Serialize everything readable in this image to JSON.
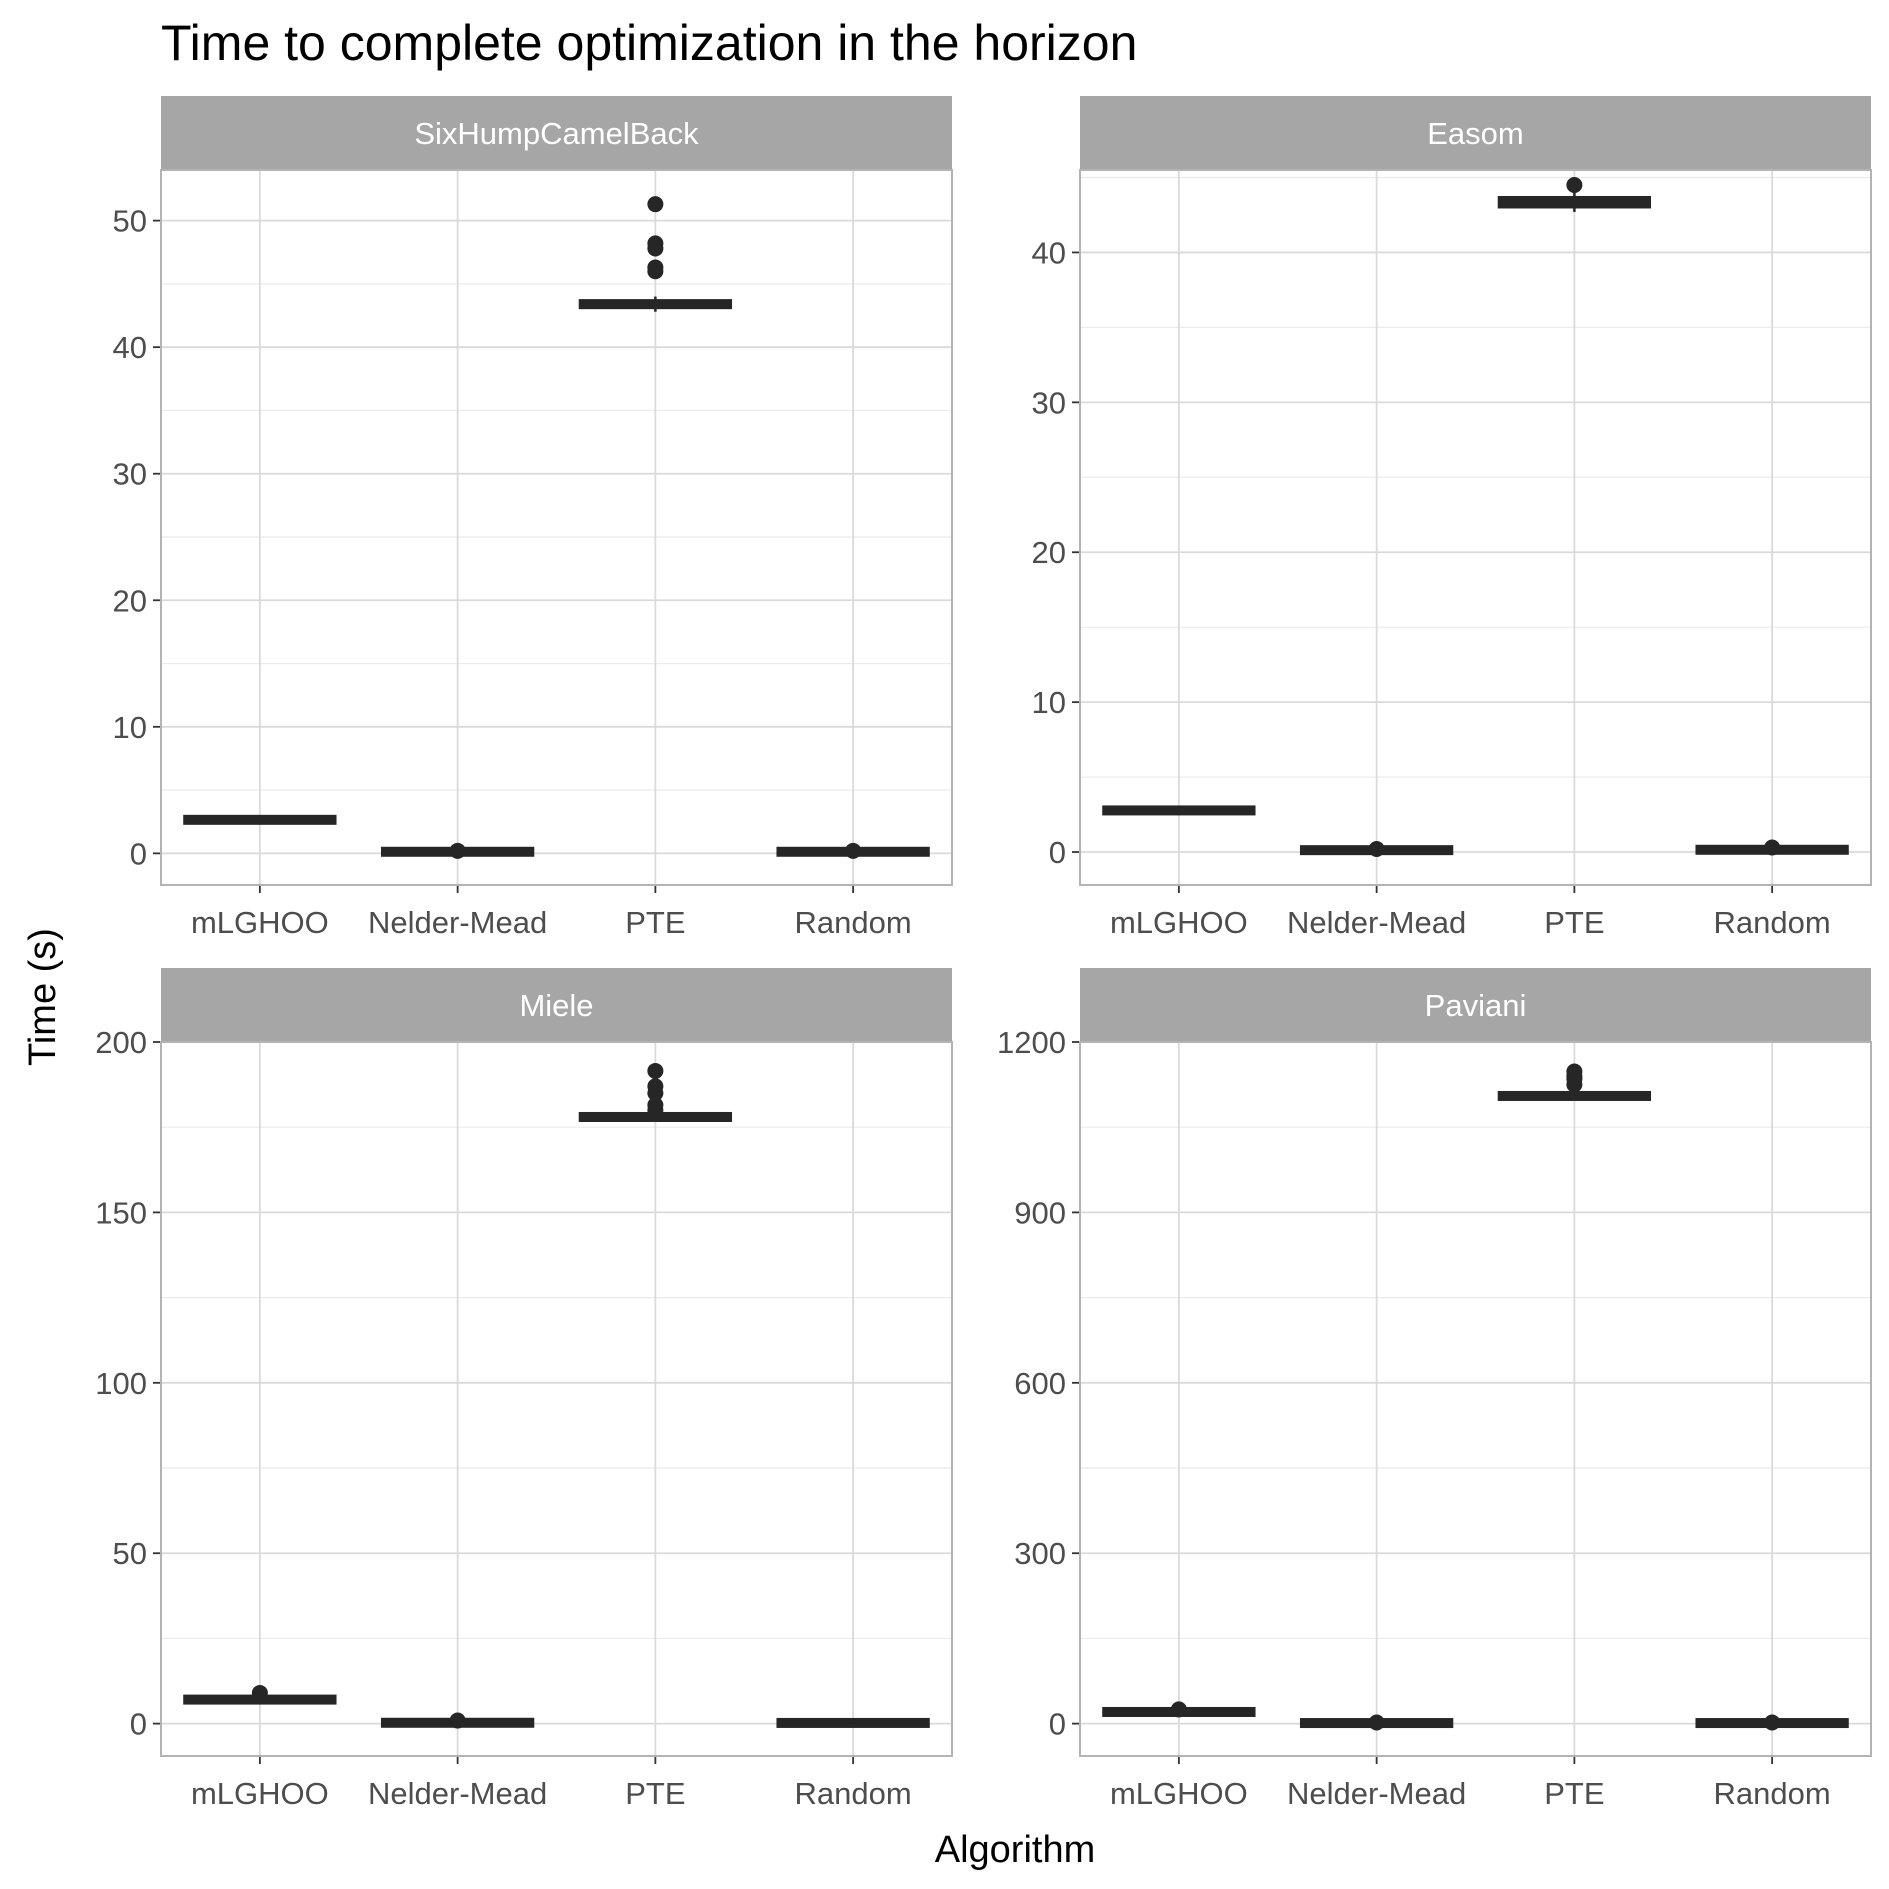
{
  "chart_data": {
    "type": "box",
    "title": "Time to complete optimization in the horizon",
    "xlabel": "Algorithm",
    "ylabel": "Time (s)",
    "categories": [
      "mLGHOO",
      "Nelder-Mead",
      "PTE",
      "Random"
    ],
    "grid": true,
    "theme": "light",
    "panels": [
      {
        "name": "SixHumpCamelBack",
        "ylim": [
          -2.5,
          54
        ],
        "yticks": [
          0,
          10,
          20,
          30,
          40,
          50
        ],
        "boxes": [
          {
            "category": "mLGHOO",
            "min": 2.6,
            "q1": 2.6,
            "median": 2.65,
            "q3": 2.7,
            "max": 2.8,
            "outliers": []
          },
          {
            "category": "Nelder-Mead",
            "min": 0.05,
            "q1": 0.1,
            "median": 0.1,
            "q3": 0.15,
            "max": 0.2,
            "outliers": [
              0.2
            ]
          },
          {
            "category": "PTE",
            "min": 42.8,
            "q1": 43.2,
            "median": 43.4,
            "q3": 43.6,
            "max": 44.0,
            "outliers": [
              46.0,
              46.3,
              47.8,
              48.2,
              51.3
            ]
          },
          {
            "category": "Random",
            "min": 0.05,
            "q1": 0.1,
            "median": 0.1,
            "q3": 0.15,
            "max": 0.2,
            "outliers": [
              0.2
            ]
          }
        ]
      },
      {
        "name": "Easom",
        "ylim": [
          -2.2,
          45.5
        ],
        "yticks": [
          0,
          10,
          20,
          30,
          40
        ],
        "boxes": [
          {
            "category": "mLGHOO",
            "min": 2.6,
            "q1": 2.7,
            "median": 2.75,
            "q3": 2.85,
            "max": 3.0,
            "outliers": []
          },
          {
            "category": "Nelder-Mead",
            "min": 0.05,
            "q1": 0.1,
            "median": 0.1,
            "q3": 0.15,
            "max": 0.2,
            "outliers": [
              0.2
            ]
          },
          {
            "category": "PTE",
            "min": 42.7,
            "q1": 43.1,
            "median": 43.3,
            "q3": 43.6,
            "max": 44.0,
            "outliers": [
              44.5
            ]
          },
          {
            "category": "Random",
            "min": 0.05,
            "q1": 0.1,
            "median": 0.15,
            "q3": 0.2,
            "max": 0.3,
            "outliers": [
              0.3
            ]
          }
        ]
      },
      {
        "name": "Miele",
        "ylim": [
          -9.5,
          200
        ],
        "yticks": [
          0,
          50,
          100,
          150,
          200
        ],
        "boxes": [
          {
            "category": "mLGHOO",
            "min": 6.5,
            "q1": 6.8,
            "median": 7.0,
            "q3": 7.3,
            "max": 7.8,
            "outliers": [
              9.0
            ]
          },
          {
            "category": "Nelder-Mead",
            "min": 0.0,
            "q1": 0.1,
            "median": 0.2,
            "q3": 0.4,
            "max": 0.6,
            "outliers": [
              0.9
            ]
          },
          {
            "category": "PTE",
            "min": 177.0,
            "q1": 177.5,
            "median": 178.0,
            "q3": 178.5,
            "max": 179.0,
            "outliers": [
              180.0,
              181.5,
              185.0,
              187.0,
              191.5
            ]
          },
          {
            "category": "Random",
            "min": 0.0,
            "q1": 0.1,
            "median": 0.2,
            "q3": 0.3,
            "max": 0.4,
            "outliers": []
          }
        ]
      },
      {
        "name": "Paviani",
        "ylim": [
          -57,
          1200
        ],
        "yticks": [
          0,
          300,
          600,
          900,
          1200
        ],
        "boxes": [
          {
            "category": "mLGHOO",
            "min": 18.0,
            "q1": 19.5,
            "median": 20.5,
            "q3": 21.5,
            "max": 23.0,
            "outliers": [
              25.0
            ]
          },
          {
            "category": "Nelder-Mead",
            "min": 0.0,
            "q1": 0.5,
            "median": 1.0,
            "q3": 1.5,
            "max": 2.0,
            "outliers": [
              2.0
            ]
          },
          {
            "category": "PTE",
            "min": 1100.0,
            "q1": 1102.0,
            "median": 1105.0,
            "q3": 1108.0,
            "max": 1112.0,
            "outliers": [
              1125.0,
              1135.0,
              1140.0,
              1148.0
            ]
          },
          {
            "category": "Random",
            "min": 0.0,
            "q1": 0.5,
            "median": 1.0,
            "q3": 1.5,
            "max": 2.0,
            "outliers": [
              2.0
            ]
          }
        ]
      }
    ]
  },
  "colors": {
    "strip": "#a6a6a6",
    "strip_text": "#ffffff",
    "grid_major": "#dadada",
    "grid_minor": "#ebebeb",
    "panel_border": "#b3b3b3",
    "box": "#262626",
    "tick_text": "#4d4d4d"
  }
}
